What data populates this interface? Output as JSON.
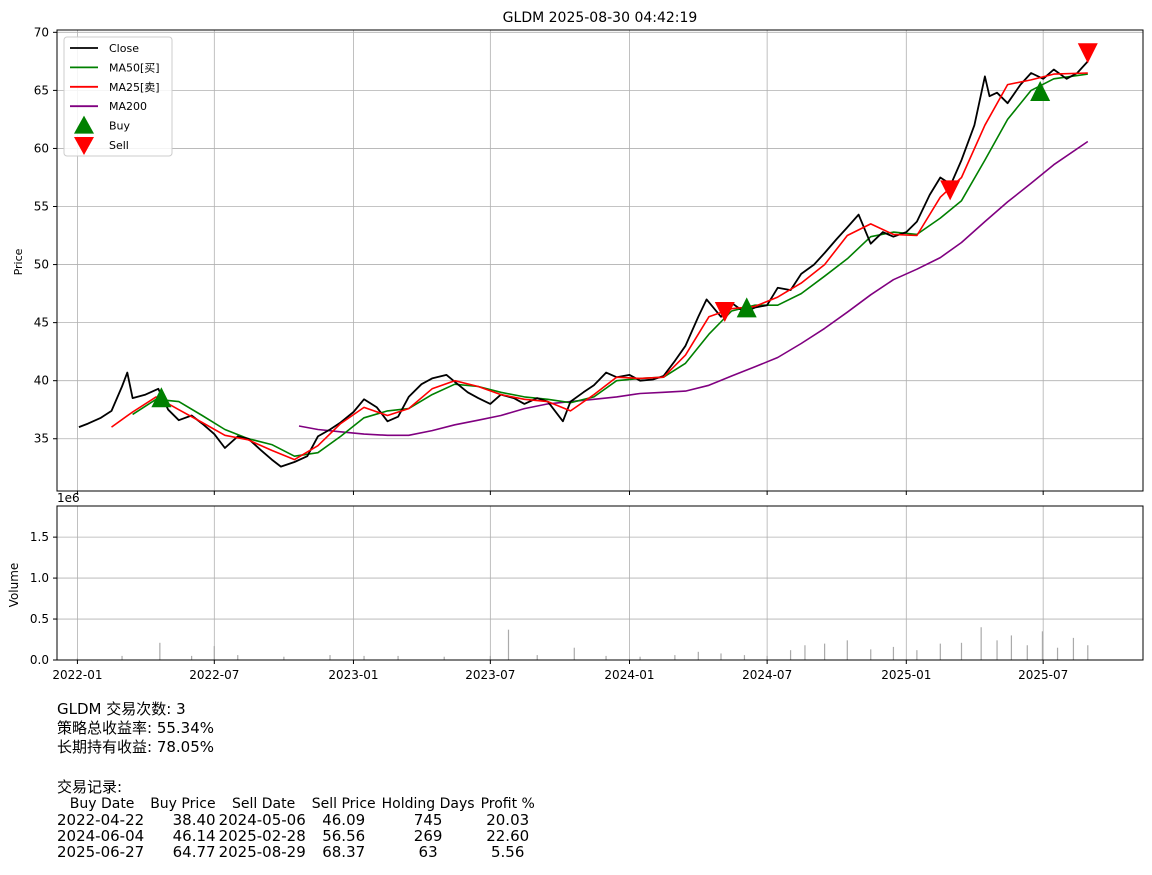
{
  "chart_data": [
    {
      "type": "line",
      "title": "GLDM 2025-08-30 04:42:19",
      "ylabel": "Price",
      "ylim": [
        30.5,
        70.2
      ],
      "xlim": [
        "2021-12-05",
        "2025-11-10"
      ],
      "yticks": [
        35,
        40,
        45,
        50,
        55,
        60,
        65,
        70
      ],
      "grid": true,
      "legend_position": "top-left",
      "legend": [
        "Close",
        "MA50[买]",
        "MA25[卖]",
        "MA200",
        "Buy",
        "Sell"
      ],
      "colors": {
        "Close": "#000000",
        "MA50": "#008000",
        "MA25": "#ff0000",
        "MA200": "#800080",
        "Buy": "#008000",
        "Sell": "#ff0000"
      },
      "series": [
        {
          "name": "Close",
          "x": [
            "2022-01-03",
            "2022-01-15",
            "2022-02-01",
            "2022-02-15",
            "2022-03-01",
            "2022-03-08",
            "2022-03-15",
            "2022-04-01",
            "2022-04-18",
            "2022-05-01",
            "2022-05-15",
            "2022-06-01",
            "2022-06-15",
            "2022-07-01",
            "2022-07-15",
            "2022-08-01",
            "2022-08-15",
            "2022-09-01",
            "2022-09-15",
            "2022-09-27",
            "2022-10-15",
            "2022-11-01",
            "2022-11-15",
            "2022-12-01",
            "2022-12-15",
            "2023-01-01",
            "2023-01-15",
            "2023-02-01",
            "2023-02-15",
            "2023-03-01",
            "2023-03-15",
            "2023-04-01",
            "2023-04-15",
            "2023-05-04",
            "2023-05-15",
            "2023-06-01",
            "2023-06-15",
            "2023-07-01",
            "2023-07-15",
            "2023-08-01",
            "2023-08-15",
            "2023-09-01",
            "2023-09-15",
            "2023-10-05",
            "2023-10-15",
            "2023-11-01",
            "2023-11-15",
            "2023-12-01",
            "2023-12-15",
            "2024-01-01",
            "2024-01-15",
            "2024-02-01",
            "2024-02-15",
            "2024-03-01",
            "2024-03-15",
            "2024-04-01",
            "2024-04-12",
            "2024-05-01",
            "2024-05-15",
            "2024-06-01",
            "2024-06-15",
            "2024-07-01",
            "2024-07-15",
            "2024-08-01",
            "2024-08-15",
            "2024-09-01",
            "2024-09-15",
            "2024-10-01",
            "2024-10-15",
            "2024-10-30",
            "2024-11-15",
            "2024-12-01",
            "2024-12-15",
            "2025-01-01",
            "2025-01-15",
            "2025-02-01",
            "2025-02-15",
            "2025-03-01",
            "2025-03-15",
            "2025-04-01",
            "2025-04-15",
            "2025-04-21",
            "2025-05-01",
            "2025-05-15",
            "2025-06-01",
            "2025-06-15",
            "2025-07-01",
            "2025-07-15",
            "2025-08-01",
            "2025-08-15",
            "2025-08-29"
          ],
          "values": [
            36.0,
            36.3,
            36.8,
            37.4,
            39.5,
            40.7,
            38.5,
            38.8,
            39.3,
            37.5,
            36.6,
            37.0,
            36.3,
            35.4,
            34.2,
            35.2,
            35.0,
            34.0,
            33.2,
            32.6,
            33.0,
            33.5,
            35.2,
            35.8,
            36.4,
            37.3,
            38.4,
            37.7,
            36.5,
            36.9,
            38.6,
            39.7,
            40.2,
            40.5,
            39.9,
            39.0,
            38.5,
            38.0,
            38.8,
            38.5,
            38.0,
            38.5,
            38.2,
            36.5,
            38.2,
            39.0,
            39.6,
            40.7,
            40.3,
            40.5,
            40.0,
            40.1,
            40.4,
            41.7,
            43.0,
            45.5,
            47.0,
            45.5,
            46.7,
            45.9,
            46.3,
            46.5,
            48.0,
            47.8,
            49.2,
            50.0,
            51.0,
            52.2,
            53.2,
            54.3,
            51.8,
            52.8,
            52.4,
            52.8,
            53.7,
            56.0,
            57.5,
            56.9,
            59.0,
            62.0,
            66.2,
            64.5,
            64.8,
            63.9,
            65.5,
            66.5,
            66.0,
            66.8,
            66.0,
            66.5,
            67.5
          ]
        },
        {
          "name": "MA50[买]",
          "x": [
            "2022-03-15",
            "2022-04-15",
            "2022-05-15",
            "2022-06-15",
            "2022-07-15",
            "2022-08-15",
            "2022-09-15",
            "2022-10-15",
            "2022-11-15",
            "2022-12-15",
            "2023-01-15",
            "2023-02-15",
            "2023-03-15",
            "2023-04-15",
            "2023-05-15",
            "2023-06-15",
            "2023-07-15",
            "2023-08-15",
            "2023-09-15",
            "2023-10-15",
            "2023-11-15",
            "2023-12-15",
            "2024-01-15",
            "2024-02-15",
            "2024-03-15",
            "2024-04-15",
            "2024-05-15",
            "2024-06-15",
            "2024-07-15",
            "2024-08-15",
            "2024-09-15",
            "2024-10-15",
            "2024-11-15",
            "2024-12-15",
            "2025-01-15",
            "2025-02-15",
            "2025-03-15",
            "2025-04-15",
            "2025-05-15",
            "2025-06-15",
            "2025-07-15",
            "2025-08-29"
          ],
          "values": [
            37.1,
            38.4,
            38.2,
            37.0,
            35.8,
            35.0,
            34.5,
            33.5,
            33.8,
            35.2,
            36.8,
            37.4,
            37.6,
            38.8,
            39.7,
            39.5,
            39.0,
            38.6,
            38.4,
            38.1,
            38.6,
            40.0,
            40.2,
            40.3,
            41.5,
            44.0,
            46.0,
            46.5,
            46.5,
            47.5,
            49.0,
            50.5,
            52.4,
            52.8,
            52.6,
            54.0,
            55.5,
            59.0,
            62.5,
            65.0,
            66.0,
            66.4
          ]
        },
        {
          "name": "MA25[卖]",
          "x": [
            "2022-02-15",
            "2022-03-15",
            "2022-04-15",
            "2022-05-15",
            "2022-06-15",
            "2022-07-15",
            "2022-08-15",
            "2022-09-15",
            "2022-10-15",
            "2022-11-15",
            "2022-12-15",
            "2023-01-15",
            "2023-02-15",
            "2023-03-15",
            "2023-04-15",
            "2023-05-15",
            "2023-06-15",
            "2023-07-15",
            "2023-08-15",
            "2023-09-15",
            "2023-10-15",
            "2023-11-15",
            "2023-12-15",
            "2024-01-15",
            "2024-02-15",
            "2024-03-15",
            "2024-04-15",
            "2024-05-15",
            "2024-06-15",
            "2024-07-15",
            "2024-08-15",
            "2024-09-15",
            "2024-10-15",
            "2024-11-15",
            "2024-12-15",
            "2025-01-15",
            "2025-02-15",
            "2025-03-15",
            "2025-04-15",
            "2025-05-15",
            "2025-06-15",
            "2025-07-15",
            "2025-08-29"
          ],
          "values": [
            36.0,
            37.3,
            38.6,
            37.5,
            36.4,
            35.3,
            34.9,
            34.0,
            33.2,
            34.4,
            36.3,
            37.7,
            37.0,
            37.6,
            39.3,
            40.0,
            39.5,
            38.8,
            38.4,
            38.2,
            37.4,
            38.8,
            40.3,
            40.2,
            40.3,
            42.2,
            45.5,
            46.2,
            46.4,
            47.2,
            48.4,
            50.0,
            52.5,
            53.5,
            52.6,
            52.5,
            55.8,
            57.5,
            62.0,
            65.5,
            65.9,
            66.4,
            66.5
          ]
        },
        {
          "name": "MA200",
          "x": [
            "2022-10-21",
            "2022-11-15",
            "2022-12-15",
            "2023-01-15",
            "2023-02-15",
            "2023-03-15",
            "2023-04-15",
            "2023-05-15",
            "2023-06-15",
            "2023-07-15",
            "2023-08-15",
            "2023-09-15",
            "2023-10-15",
            "2023-11-15",
            "2023-12-15",
            "2024-01-15",
            "2024-02-15",
            "2024-03-15",
            "2024-04-15",
            "2024-05-15",
            "2024-06-15",
            "2024-07-15",
            "2024-08-15",
            "2024-09-15",
            "2024-10-15",
            "2024-11-15",
            "2024-12-15",
            "2025-01-15",
            "2025-02-15",
            "2025-03-15",
            "2025-04-15",
            "2025-05-15",
            "2025-06-15",
            "2025-07-15",
            "2025-08-29"
          ],
          "values": [
            36.1,
            35.8,
            35.6,
            35.4,
            35.3,
            35.3,
            35.7,
            36.2,
            36.6,
            37.0,
            37.6,
            38.0,
            38.2,
            38.4,
            38.6,
            38.9,
            39.0,
            39.1,
            39.6,
            40.4,
            41.2,
            42.0,
            43.2,
            44.5,
            45.9,
            47.4,
            48.7,
            49.6,
            50.6,
            51.9,
            53.7,
            55.4,
            57.0,
            58.6,
            60.6
          ]
        }
      ],
      "markers": {
        "buy": [
          {
            "x": "2022-04-22",
            "y": 38.4
          },
          {
            "x": "2024-06-04",
            "y": 46.14
          },
          {
            "x": "2025-06-27",
            "y": 64.77
          }
        ],
        "sell": [
          {
            "x": "2024-05-06",
            "y": 46.09
          },
          {
            "x": "2025-02-28",
            "y": 56.56
          },
          {
            "x": "2025-08-29",
            "y": 68.37
          }
        ]
      }
    },
    {
      "type": "bar",
      "ylabel": "Volume",
      "y_offset_label": "1e6",
      "yticks": [
        0.0,
        0.5,
        1.0,
        1.5
      ],
      "ylim": [
        0,
        1.88
      ],
      "xticks": [
        "2022-01",
        "2022-07",
        "2023-01",
        "2023-07",
        "2024-01",
        "2024-07",
        "2025-01",
        "2025-07"
      ],
      "grid": true,
      "color": "#aaaaaa",
      "x": [
        "2022-01-01",
        "2022-03-01",
        "2022-04-20",
        "2022-06-01",
        "2022-07-01",
        "2022-08-01",
        "2022-10-01",
        "2022-12-01",
        "2023-01-15",
        "2023-03-01",
        "2023-05-01",
        "2023-07-01",
        "2023-07-25",
        "2023-09-01",
        "2023-10-20",
        "2023-12-01",
        "2024-01-15",
        "2024-03-01",
        "2024-04-01",
        "2024-05-01",
        "2024-06-01",
        "2024-07-01",
        "2024-08-01",
        "2024-08-20",
        "2024-09-15",
        "2024-10-15",
        "2024-11-15",
        "2024-12-15",
        "2025-01-15",
        "2025-02-15",
        "2025-03-15",
        "2025-04-10",
        "2025-05-01",
        "2025-05-20",
        "2025-06-10",
        "2025-06-30",
        "2025-07-20",
        "2025-08-10",
        "2025-08-29"
      ],
      "values": [
        0.02,
        0.05,
        0.21,
        0.05,
        0.17,
        0.06,
        0.04,
        0.06,
        0.05,
        0.05,
        0.04,
        0.05,
        0.37,
        0.06,
        0.15,
        0.05,
        0.04,
        0.06,
        0.1,
        0.08,
        0.06,
        0.05,
        0.12,
        0.18,
        0.2,
        0.24,
        0.13,
        0.16,
        0.12,
        0.2,
        0.21,
        0.4,
        0.24,
        0.3,
        0.18,
        0.35,
        0.15,
        0.27,
        0.18
      ]
    }
  ],
  "summary": {
    "line1": "GLDM 交易次数: 3",
    "line2": "策略总收益率: 55.34%",
    "line3": "长期持有收益: 78.05%"
  },
  "trades": {
    "title": "交易记录:",
    "headers": [
      "Buy Date",
      "Buy Price",
      "Sell Date",
      "Sell Price",
      "Holding Days",
      "Profit %"
    ],
    "rows": [
      [
        "2022-04-22",
        "38.40",
        "2024-05-06",
        "46.09",
        "745",
        "20.03"
      ],
      [
        "2024-06-04",
        "46.14",
        "2025-02-28",
        "56.56",
        "269",
        "22.60"
      ],
      [
        "2025-06-27",
        "64.77",
        "2025-08-29",
        "68.37",
        "63",
        "5.56"
      ]
    ]
  }
}
